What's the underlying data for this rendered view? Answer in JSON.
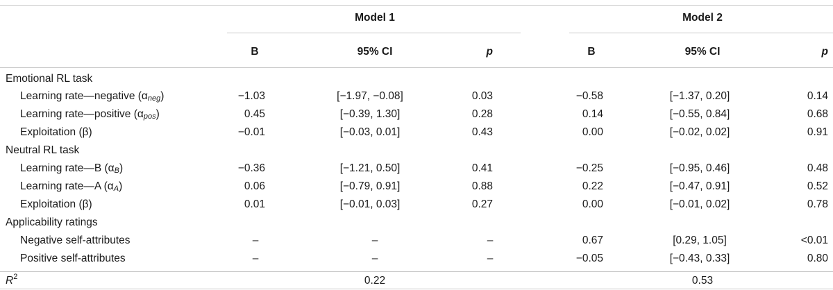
{
  "models": [
    {
      "title": "Model 1"
    },
    {
      "title": "Model 2"
    }
  ],
  "columns": {
    "b": "B",
    "ci": "95% CI",
    "p": "p"
  },
  "sections": [
    {
      "title": "Emotional RL task",
      "rows": [
        {
          "label_pre": "Learning rate—negative (α",
          "label_sub": "neg",
          "label_post": ")",
          "m1": {
            "b": "−1.03",
            "ci": "[−1.97, −0.08]",
            "p": "0.03"
          },
          "m2": {
            "b": "−0.58",
            "ci": "[−1.37, 0.20]",
            "p": "0.14"
          }
        },
        {
          "label_pre": "Learning rate—positive (α",
          "label_sub": "pos",
          "label_post": ")",
          "m1": {
            "b": "0.45",
            "ci": "[−0.39, 1.30]",
            "p": "0.28"
          },
          "m2": {
            "b": "0.14",
            "ci": "[−0.55, 0.84]",
            "p": "0.68"
          }
        },
        {
          "label_pre": "Exploitation (β)",
          "label_sub": "",
          "label_post": "",
          "m1": {
            "b": "−0.01",
            "ci": "[−0.03, 0.01]",
            "p": "0.43"
          },
          "m2": {
            "b": "0.00",
            "ci": "[−0.02, 0.02]",
            "p": "0.91"
          }
        }
      ]
    },
    {
      "title": "Neutral RL task",
      "rows": [
        {
          "label_pre": "Learning rate—B (α",
          "label_sub": "B",
          "label_post": ")",
          "m1": {
            "b": "−0.36",
            "ci": "[−1.21, 0.50]",
            "p": "0.41"
          },
          "m2": {
            "b": "−0.25",
            "ci": "[−0.95, 0.46]",
            "p": "0.48"
          }
        },
        {
          "label_pre": "Learning rate—A (α",
          "label_sub": "A",
          "label_post": ")",
          "m1": {
            "b": "0.06",
            "ci": "[−0.79, 0.91]",
            "p": "0.88"
          },
          "m2": {
            "b": "0.22",
            "ci": "[−0.47, 0.91]",
            "p": "0.52"
          }
        },
        {
          "label_pre": "Exploitation (β)",
          "label_sub": "",
          "label_post": "",
          "m1": {
            "b": "0.01",
            "ci": "[−0.01, 0.03]",
            "p": "0.27"
          },
          "m2": {
            "b": "0.00",
            "ci": "[−0.01, 0.02]",
            "p": "0.78"
          }
        }
      ]
    },
    {
      "title": "Applicability ratings",
      "rows": [
        {
          "label_pre": "Negative self-attributes",
          "label_sub": "",
          "label_post": "",
          "m1": {
            "b": "–",
            "ci": "–",
            "p": "–"
          },
          "m2": {
            "b": "0.67",
            "ci": "[0.29, 1.05]",
            "p": "<0.01"
          }
        },
        {
          "label_pre": "Positive self-attributes",
          "label_sub": "",
          "label_post": "",
          "m1": {
            "b": "–",
            "ci": "–",
            "p": "–"
          },
          "m2": {
            "b": "−0.05",
            "ci": "[−0.43, 0.33]",
            "p": "0.80"
          }
        }
      ]
    }
  ],
  "r2": {
    "label": "R",
    "label_sup": "2",
    "m1": "0.22",
    "m2": "0.53"
  }
}
